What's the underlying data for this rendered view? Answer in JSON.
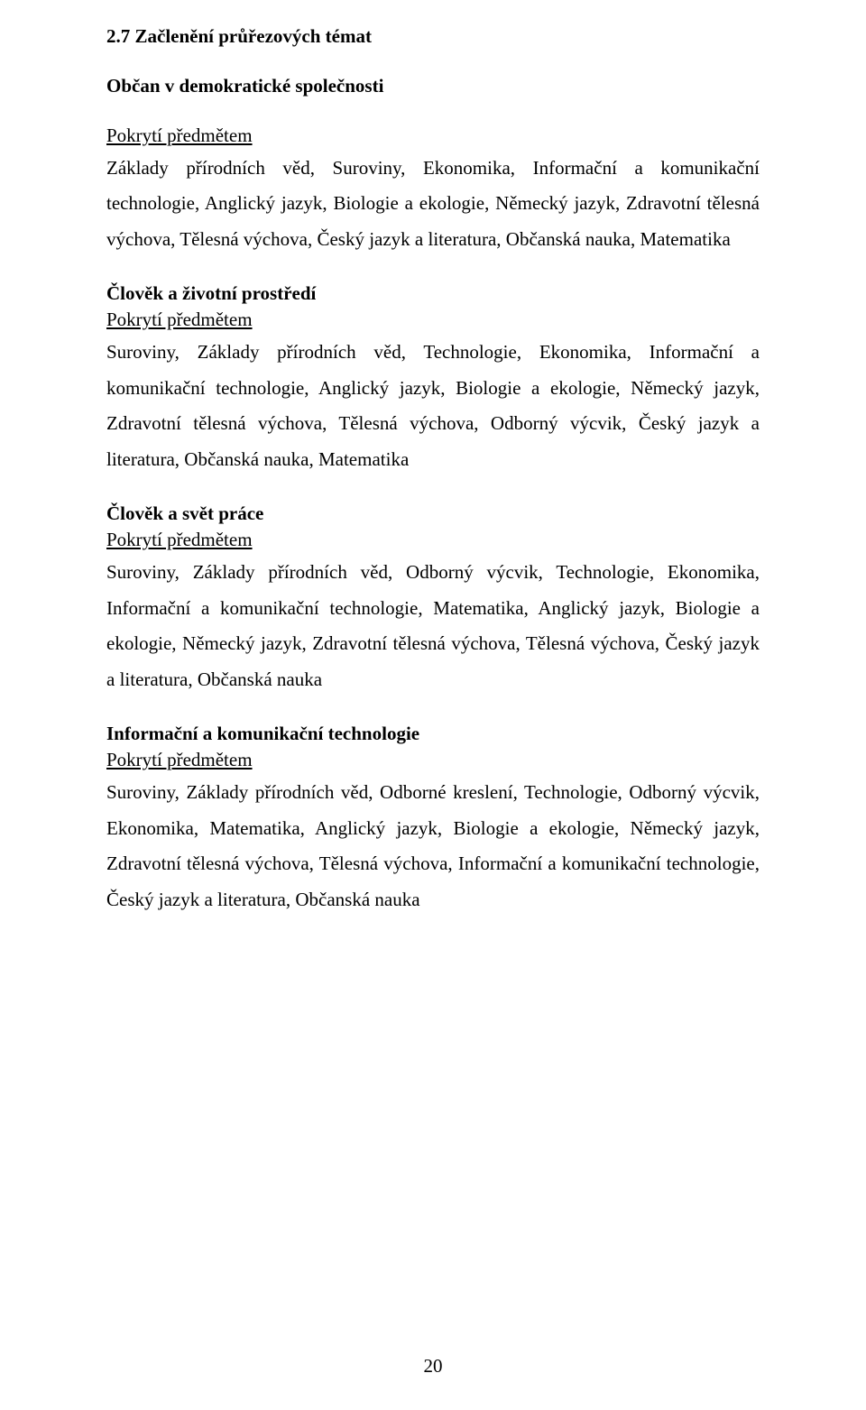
{
  "heading": "2.7 Začlenění průřezových témat",
  "sections": [
    {
      "title": "Občan v demokratické společnosti",
      "covered_label": "Pokrytí předmětem",
      "body": "Základy přírodních věd, Suroviny, Ekonomika, Informační a komunikační technologie, Anglický jazyk, Biologie a ekologie, Německý jazyk, Zdravotní tělesná výchova, Tělesná výchova, Český jazyk a literatura, Občanská nauka, Matematika"
    },
    {
      "title": "Člověk a životní prostředí",
      "covered_label": "Pokrytí předmětem",
      "body": "Suroviny, Základy přírodních věd, Technologie, Ekonomika, Informační a komunikační technologie, Anglický jazyk, Biologie a ekologie, Německý jazyk, Zdravotní tělesná výchova, Tělesná výchova, Odborný výcvik, Český jazyk a literatura, Občanská nauka, Matematika"
    },
    {
      "title": "Člověk a svět práce",
      "covered_label": "Pokrytí předmětem",
      "body": "Suroviny, Základy přírodních věd, Odborný výcvik, Technologie, Ekonomika, Informační a komunikační technologie, Matematika, Anglický jazyk, Biologie a ekologie, Německý jazyk, Zdravotní tělesná výchova, Tělesná výchova, Český jazyk a literatura, Občanská nauka"
    },
    {
      "title": "Informační a komunikační technologie",
      "covered_label": "Pokrytí předmětem",
      "body": "Suroviny, Základy přírodních věd, Odborné kreslení, Technologie, Odborný výcvik, Ekonomika, Matematika, Anglický jazyk, Biologie a ekologie, Německý jazyk, Zdravotní tělesná výchova, Tělesná výchova, Informační a komunikační technologie, Český jazyk a literatura, Občanská nauka"
    }
  ],
  "page_number": "20"
}
